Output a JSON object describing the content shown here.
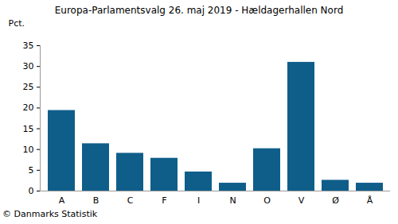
{
  "chart_data": {
    "type": "bar",
    "title": "Europa-Parlamentsvalg 26. maj 2019 - Hældagerhallen Nord",
    "y_label": "Pct.",
    "caption": "© Danmarks Statistik",
    "categories": [
      "A",
      "B",
      "C",
      "F",
      "I",
      "N",
      "O",
      "V",
      "Ø",
      "Å"
    ],
    "values": [
      19.4,
      11.4,
      9.1,
      7.9,
      4.6,
      1.9,
      10.2,
      31.0,
      2.6,
      1.9
    ],
    "color": "#0f5e8a",
    "ylim": [
      0,
      35
    ],
    "yticks": [
      0,
      5,
      10,
      15,
      20,
      25,
      30,
      35
    ],
    "grid": false
  }
}
